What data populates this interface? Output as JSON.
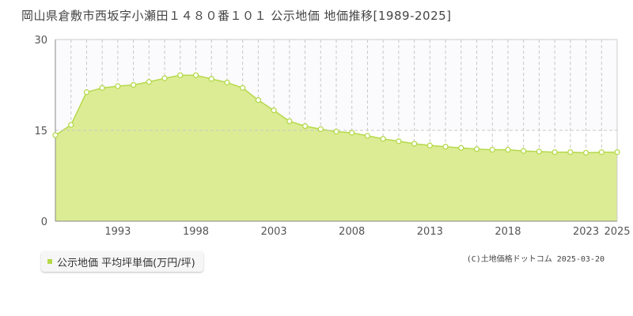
{
  "chart_data": {
    "type": "area",
    "title": "岡山県倉敷市西坂字小瀬田１４８０番１０１ 公示地価 地価推移[1989-2025]",
    "x": [
      1989,
      1990,
      1991,
      1992,
      1993,
      1994,
      1995,
      1996,
      1997,
      1998,
      1999,
      2000,
      2001,
      2002,
      2003,
      2004,
      2005,
      2006,
      2007,
      2008,
      2009,
      2010,
      2011,
      2012,
      2013,
      2014,
      2015,
      2016,
      2017,
      2018,
      2019,
      2020,
      2021,
      2022,
      2023,
      2024,
      2025
    ],
    "values": [
      14.2,
      15.9,
      21.3,
      22.0,
      22.3,
      22.5,
      23.0,
      23.6,
      24.1,
      24.1,
      23.5,
      22.9,
      22.0,
      20.0,
      18.3,
      16.5,
      15.7,
      15.2,
      14.8,
      14.6,
      14.1,
      13.6,
      13.2,
      12.8,
      12.5,
      12.3,
      12.1,
      11.9,
      11.8,
      11.8,
      11.6,
      11.5,
      11.4,
      11.4,
      11.3,
      11.4,
      11.4
    ],
    "xlim": [
      1989,
      2025
    ],
    "ylim": [
      0,
      30
    ],
    "yticks": [
      0,
      15,
      30
    ],
    "xticks": [
      1993,
      1998,
      2003,
      2008,
      2013,
      2018,
      2023,
      2025
    ],
    "legend": "公示地価 平均坪単価(万円/坪)",
    "fill_color": "#dcec94",
    "line_color": "#b5d94a",
    "grid": true
  },
  "copyright": "(C)土地価格ドットコム 2025-03-20"
}
